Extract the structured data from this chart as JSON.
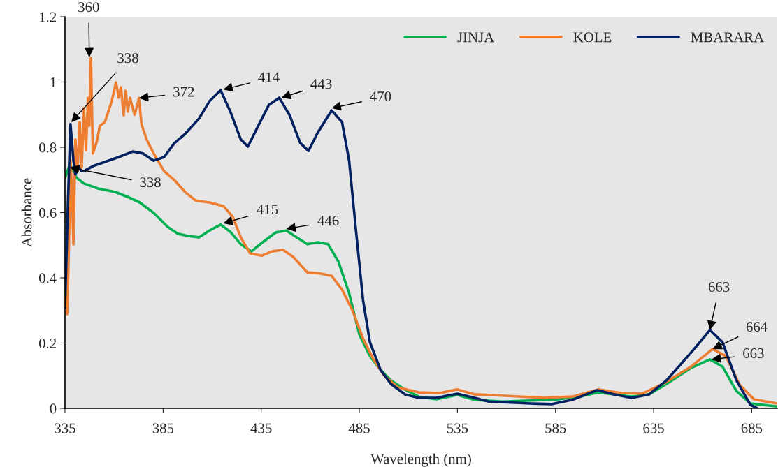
{
  "chart_data": {
    "type": "line",
    "xlabel": "Wavelength (nm)",
    "ylabel": "Absorbance",
    "xlim": [
      335,
      698
    ],
    "xticks": [
      335,
      385,
      435,
      485,
      535,
      585,
      635,
      685
    ],
    "ylim": [
      0,
      1.2
    ],
    "yticks": [
      0,
      0.2,
      0.4,
      0.6,
      0.8,
      1,
      1.2
    ],
    "grid": false,
    "legend": "top right",
    "marker": "none",
    "line_style": "solid",
    "series": [
      {
        "name": "JINJA",
        "color": "#00b050",
        "x": [
          335,
          337.5,
          341,
          344.6,
          351.7,
          360.6,
          367.7,
          373.1,
          380.2,
          387.3,
          392.6,
          398,
          403.3,
          408.7,
          414.3,
          419.3,
          424.6,
          430,
          435.3,
          442.4,
          447.8,
          453.1,
          458.5,
          463.8,
          469.1,
          474.4,
          479.8,
          485.1,
          490.4,
          495.8,
          501.1,
          508.2,
          515.3,
          524.2,
          534.9,
          543.8,
          558,
          572.3,
          586.5,
          597.2,
          606.8,
          614.9,
          623.8,
          632.7,
          641.6,
          654.1,
          663.7,
          670.1,
          677.2,
          684.3,
          697.8
        ],
        "values": [
          0.706,
          0.749,
          0.706,
          0.689,
          0.674,
          0.663,
          0.646,
          0.631,
          0.599,
          0.556,
          0.535,
          0.528,
          0.524,
          0.545,
          0.563,
          0.541,
          0.503,
          0.481,
          0.507,
          0.539,
          0.545,
          0.524,
          0.503,
          0.509,
          0.503,
          0.449,
          0.353,
          0.225,
          0.16,
          0.118,
          0.086,
          0.058,
          0.036,
          0.028,
          0.041,
          0.026,
          0.021,
          0.024,
          0.028,
          0.036,
          0.049,
          0.043,
          0.036,
          0.043,
          0.075,
          0.124,
          0.15,
          0.128,
          0.053,
          0.015,
          0.006
        ]
      },
      {
        "name": "KOLE",
        "color": "#ed7d31",
        "x": [
          336.1,
          336.8,
          337.8,
          338.6,
          339.3,
          340.3,
          341.4,
          342.5,
          343.5,
          344.6,
          345.7,
          346.7,
          347.4,
          348.2,
          349.2,
          351,
          352.8,
          355.3,
          358.8,
          361,
          362.4,
          363.5,
          364.9,
          365.9,
          367,
          368.1,
          369.5,
          370.5,
          372.7,
          374.0,
          376.6,
          380.2,
          385.5,
          390.8,
          396.2,
          401.5,
          408.6,
          415.7,
          420.4,
          424.6,
          429.3,
          435.3,
          440.6,
          446,
          451.3,
          458.4,
          465.5,
          470.9,
          476.2,
          481.6,
          486.9,
          492.2,
          497.6,
          504.7,
          515.3,
          526,
          534.9,
          543.8,
          558,
          579.4,
          593.6,
          606.8,
          618.5,
          629.2,
          639.8,
          654.1,
          665.1,
          671.8,
          679,
          686.1,
          697.8
        ],
        "values": [
          0.289,
          0.449,
          0.759,
          0.652,
          0.503,
          0.824,
          0.727,
          0.877,
          0.738,
          0.92,
          0.791,
          0.952,
          0.866,
          1.074,
          0.781,
          0.813,
          0.866,
          0.877,
          0.941,
          0.999,
          0.952,
          0.984,
          0.898,
          0.973,
          0.909,
          0.952,
          0.92,
          0.9,
          0.951,
          0.87,
          0.824,
          0.781,
          0.727,
          0.699,
          0.663,
          0.637,
          0.631,
          0.62,
          0.588,
          0.524,
          0.475,
          0.468,
          0.481,
          0.486,
          0.464,
          0.417,
          0.413,
          0.406,
          0.364,
          0.299,
          0.214,
          0.15,
          0.101,
          0.064,
          0.049,
          0.047,
          0.058,
          0.043,
          0.039,
          0.032,
          0.036,
          0.058,
          0.047,
          0.045,
          0.075,
          0.128,
          0.182,
          0.16,
          0.071,
          0.028,
          0.015
        ]
      },
      {
        "name": "MBARARA",
        "color": "#002060",
        "x": [
          335,
          336.4,
          337.8,
          339.3,
          340.3,
          341.4,
          342.1,
          343.5,
          344.6,
          349.9,
          355.3,
          362.4,
          369.5,
          374.8,
          380.2,
          385.5,
          390.8,
          396.2,
          403.3,
          408.6,
          414.3,
          419.3,
          424.6,
          428.2,
          433.5,
          438.9,
          444.2,
          449.5,
          454.9,
          459.1,
          463.8,
          470.9,
          476.2,
          479.8,
          483.3,
          486.9,
          490.4,
          495.8,
          501.1,
          508.2,
          515.3,
          524.2,
          534.9,
          543.8,
          550.9,
          572.3,
          582.9,
          593.6,
          606.1,
          614.9,
          623.8,
          632.7,
          641.6,
          654.1,
          663.7,
          670.1,
          677.2,
          684.3,
          687.9
        ],
        "values": [
          0.31,
          0.61,
          0.871,
          0.759,
          0.717,
          0.732,
          0.738,
          0.727,
          0.727,
          0.744,
          0.755,
          0.77,
          0.787,
          0.781,
          0.759,
          0.77,
          0.813,
          0.841,
          0.888,
          0.941,
          0.975,
          0.909,
          0.824,
          0.802,
          0.866,
          0.93,
          0.952,
          0.898,
          0.813,
          0.789,
          0.845,
          0.913,
          0.877,
          0.759,
          0.545,
          0.332,
          0.203,
          0.118,
          0.075,
          0.043,
          0.032,
          0.032,
          0.045,
          0.032,
          0.021,
          0.015,
          0.013,
          0.026,
          0.056,
          0.043,
          0.032,
          0.043,
          0.086,
          0.171,
          0.24,
          0.203,
          0.086,
          0.011,
          0
        ]
      }
    ],
    "annotations": [
      {
        "text": "360",
        "x": 347.4,
        "y": 1.076
      },
      {
        "text": "338",
        "x": 338.2,
        "y": 0.877
      },
      {
        "text": "372",
        "x": 372.7,
        "y": 0.951
      },
      {
        "text": "414",
        "x": 415.7,
        "y": 0.977
      },
      {
        "text": "443",
        "x": 445.3,
        "y": 0.952
      },
      {
        "text": "470",
        "x": 470.9,
        "y": 0.92
      },
      {
        "text": "338",
        "x": 337.5,
        "y": 0.738
      },
      {
        "text": "415",
        "x": 415.7,
        "y": 0.567
      },
      {
        "text": "446",
        "x": 447.8,
        "y": 0.55
      },
      {
        "text": "663",
        "x": 664.5,
        "y": 0.15
      },
      {
        "text": "664",
        "x": 665.1,
        "y": 0.182
      },
      {
        "text": "663",
        "x": 663.7,
        "y": 0.24
      }
    ]
  }
}
